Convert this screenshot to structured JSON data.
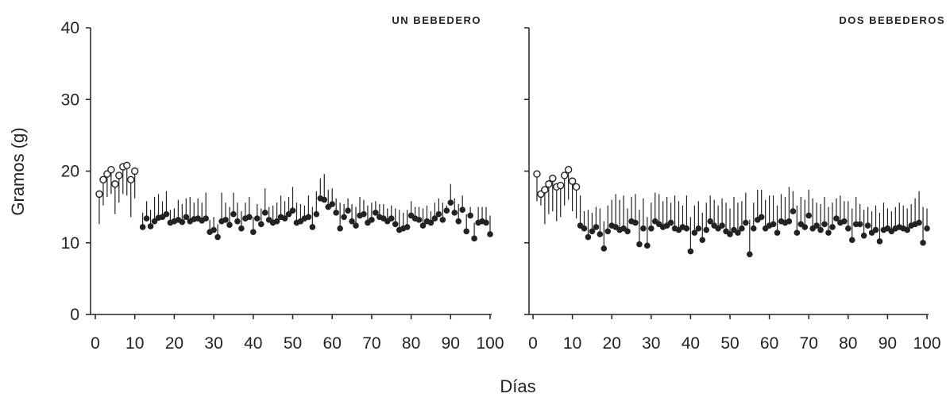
{
  "chart_data": [
    {
      "type": "scatter",
      "title": "UN BEBEDERO",
      "xlabel": "Días",
      "ylabel": "Gramos (g)",
      "xlim": [
        0,
        100
      ],
      "ylim": [
        0,
        40
      ],
      "x_ticks": [
        "0",
        "10",
        "20",
        "30",
        "40",
        "50",
        "60",
        "70",
        "80",
        "90",
        "100"
      ],
      "y_ticks": [
        "0",
        "10",
        "20",
        "30",
        "40"
      ],
      "grid": false,
      "series": [
        {
          "marker": "open-circle",
          "x": [
            1,
            2,
            3,
            4,
            5,
            6,
            7,
            8,
            9,
            10
          ],
          "y": [
            16.8,
            18.8,
            19.6,
            20.2,
            18.2,
            19.4,
            20.6,
            20.8,
            18.8,
            20.0
          ],
          "error_low": [
            12.6,
            15.2,
            16.4,
            16.8,
            14.0,
            15.6,
            16.8,
            16.6,
            13.6,
            16.2
          ]
        },
        {
          "marker": "filled-circle",
          "x": [
            12,
            13,
            14,
            15,
            16,
            17,
            18,
            19,
            20,
            21,
            22,
            23,
            24,
            25,
            26,
            27,
            28,
            29,
            30,
            31,
            32,
            33,
            34,
            35,
            36,
            37,
            38,
            39,
            40,
            41,
            42,
            43,
            44,
            45,
            46,
            47,
            48,
            49,
            50,
            51,
            52,
            53,
            54,
            55,
            56,
            57,
            58,
            59,
            60,
            61,
            62,
            63,
            64,
            65,
            66,
            67,
            68,
            69,
            70,
            71,
            72,
            73,
            74,
            75,
            76,
            77,
            78,
            79,
            80,
            81,
            82,
            83,
            84,
            85,
            86,
            87,
            88,
            89,
            90,
            91,
            92,
            93,
            94,
            95,
            96,
            97,
            98,
            99,
            100
          ],
          "y": [
            12.2,
            13.4,
            12.3,
            13.0,
            13.5,
            13.6,
            14.0,
            12.8,
            13.0,
            13.2,
            12.9,
            13.6,
            13.0,
            13.3,
            13.4,
            13.1,
            13.4,
            11.5,
            11.8,
            10.8,
            13.0,
            13.2,
            12.5,
            14.0,
            13.0,
            12.0,
            13.4,
            13.6,
            11.5,
            13.4,
            12.6,
            14.2,
            13.2,
            12.8,
            13.0,
            13.6,
            13.4,
            14.0,
            14.5,
            12.8,
            13.0,
            13.4,
            13.6,
            12.2,
            14.0,
            16.2,
            16.0,
            15.0,
            15.4,
            14.2,
            12.0,
            13.6,
            14.5,
            13.0,
            12.4,
            13.8,
            14.0,
            12.8,
            13.2,
            14.2,
            13.6,
            13.4,
            13.0,
            13.4,
            12.6,
            11.8,
            12.0,
            12.2,
            13.8,
            13.4,
            13.2,
            12.4,
            13.0,
            12.8,
            13.4,
            14.0,
            13.2,
            14.5,
            15.6,
            14.2,
            13.0,
            14.6,
            11.6,
            13.8,
            10.6,
            12.8,
            13.0,
            12.8,
            11.2
          ],
          "error_high": [
            14.2,
            15.8,
            14.6,
            16.4,
            16.8,
            15.8,
            17.2,
            14.6,
            14.8,
            16.0,
            15.4,
            16.2,
            16.4,
            15.6,
            16.2,
            15.6,
            17.0,
            13.2,
            13.6,
            12.6,
            17.0,
            15.6,
            15.0,
            17.0,
            15.6,
            14.4,
            15.6,
            16.4,
            13.6,
            15.4,
            14.8,
            17.6,
            15.0,
            15.2,
            15.6,
            16.6,
            15.8,
            16.4,
            17.8,
            15.6,
            15.4,
            15.2,
            16.6,
            15.0,
            17.2,
            19.0,
            19.6,
            17.4,
            17.6,
            16.2,
            15.6,
            15.4,
            16.2,
            15.4,
            15.0,
            16.4,
            16.0,
            15.2,
            15.6,
            15.8,
            15.4,
            15.4,
            14.8,
            15.2,
            14.8,
            14.6,
            14.2,
            14.6,
            15.8,
            15.0,
            15.0,
            14.8,
            15.2,
            14.4,
            15.6,
            16.2,
            15.6,
            15.2,
            18.2,
            16.2,
            15.4,
            16.6,
            14.0,
            15.0,
            12.8,
            15.0,
            15.0,
            15.0,
            13.8
          ]
        }
      ]
    },
    {
      "type": "scatter",
      "title": "DOS BEBEDEROS",
      "xlabel": "Días",
      "ylabel": "",
      "xlim": [
        0,
        100
      ],
      "ylim": [
        0,
        40
      ],
      "x_ticks": [
        "0",
        "10",
        "20",
        "30",
        "40",
        "50",
        "60",
        "70",
        "80",
        "90",
        "100"
      ],
      "y_ticks": [],
      "grid": false,
      "series": [
        {
          "marker": "open-circle",
          "x": [
            1,
            2,
            3,
            4,
            5,
            6,
            7,
            8,
            9,
            10,
            11
          ],
          "y": [
            19.6,
            16.8,
            17.4,
            18.2,
            19.0,
            17.8,
            18.0,
            19.4,
            20.2,
            18.6,
            17.8
          ],
          "error_low": [
            15.8,
            15.2,
            12.6,
            14.0,
            14.4,
            13.0,
            13.6,
            15.2,
            16.0,
            14.4,
            13.4
          ]
        },
        {
          "marker": "filled-circle",
          "x": [
            12,
            13,
            14,
            15,
            16,
            17,
            18,
            19,
            20,
            21,
            22,
            23,
            24,
            25,
            26,
            27,
            28,
            29,
            30,
            31,
            32,
            33,
            34,
            35,
            36,
            37,
            38,
            39,
            40,
            41,
            42,
            43,
            44,
            45,
            46,
            47,
            48,
            49,
            50,
            51,
            52,
            53,
            54,
            55,
            56,
            57,
            58,
            59,
            60,
            61,
            62,
            63,
            64,
            65,
            66,
            67,
            68,
            69,
            70,
            71,
            72,
            73,
            74,
            75,
            76,
            77,
            78,
            79,
            80,
            81,
            82,
            83,
            84,
            85,
            86,
            87,
            88,
            89,
            90,
            91,
            92,
            93,
            94,
            95,
            96,
            97,
            98,
            99,
            100
          ],
          "y": [
            12.4,
            12.0,
            10.8,
            11.6,
            12.2,
            11.2,
            9.2,
            11.6,
            12.4,
            12.2,
            11.8,
            12.0,
            11.6,
            13.0,
            12.8,
            9.8,
            12.0,
            9.6,
            12.0,
            13.0,
            12.6,
            12.2,
            12.4,
            12.8,
            12.0,
            11.8,
            12.2,
            12.0,
            8.8,
            11.4,
            12.0,
            10.4,
            11.8,
            13.0,
            12.4,
            12.0,
            12.4,
            11.6,
            11.2,
            11.8,
            11.4,
            12.0,
            12.8,
            8.4,
            12.0,
            13.2,
            13.6,
            12.0,
            12.4,
            12.6,
            11.4,
            13.0,
            12.8,
            13.0,
            14.4,
            11.4,
            12.6,
            12.2,
            13.8,
            12.0,
            12.4,
            11.8,
            12.6,
            11.4,
            12.2,
            13.4,
            12.8,
            13.0,
            12.0,
            10.4,
            12.6,
            12.6,
            11.0,
            12.4,
            11.4,
            11.8,
            10.2,
            11.8,
            12.0,
            11.6,
            12.0,
            12.2,
            12.0,
            11.8,
            12.4,
            12.6,
            12.8,
            10.0,
            12.0
          ],
          "error_high": [
            16.6,
            14.4,
            14.6,
            14.2,
            15.0,
            14.8,
            13.0,
            15.2,
            16.0,
            16.8,
            16.0,
            16.6,
            14.8,
            16.4,
            16.8,
            14.6,
            16.2,
            13.6,
            15.6,
            17.0,
            16.8,
            15.8,
            16.4,
            15.6,
            16.6,
            15.8,
            15.2,
            16.6,
            13.6,
            15.2,
            15.8,
            14.2,
            15.6,
            16.6,
            16.0,
            15.2,
            16.2,
            15.6,
            14.8,
            16.4,
            15.6,
            15.8,
            17.0,
            13.2,
            15.6,
            17.4,
            17.4,
            16.0,
            16.6,
            16.6,
            15.2,
            16.8,
            16.4,
            17.8,
            17.2,
            15.2,
            16.4,
            16.0,
            17.4,
            16.2,
            15.6,
            15.4,
            16.4,
            15.0,
            15.6,
            16.2,
            16.6,
            15.8,
            15.8,
            14.8,
            16.4,
            15.4,
            14.6,
            15.0,
            14.4,
            15.2,
            14.2,
            15.6,
            14.8,
            14.4,
            15.0,
            15.6,
            15.2,
            14.8,
            15.4,
            16.2,
            17.2,
            15.0,
            14.8
          ]
        }
      ]
    }
  ]
}
